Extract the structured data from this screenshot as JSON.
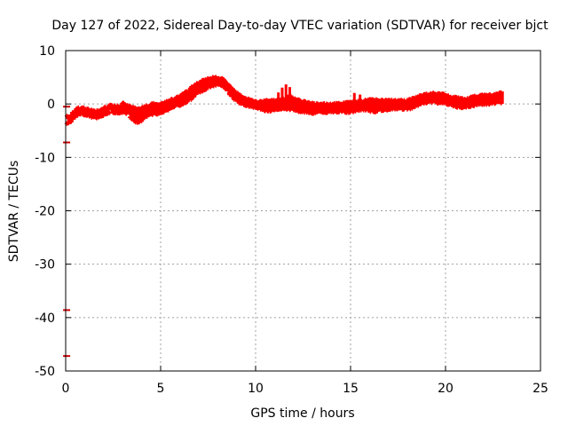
{
  "chart_data": {
    "type": "scatter",
    "title": "Day 127 of 2022, Sidereal Day-to-day VTEC variation (SDTVAR) for receiver bjct",
    "xlabel": "GPS time / hours",
    "ylabel": "SDTVAR / TECUs",
    "xlim": [
      0,
      25
    ],
    "ylim": [
      -50,
      10
    ],
    "x_ticks": [
      0,
      5,
      10,
      15,
      20,
      25
    ],
    "y_ticks": [
      10,
      0,
      -10,
      -20,
      -30,
      -40,
      -50
    ],
    "grid": true,
    "marker_color": "#ff0000",
    "series": [
      {
        "name": "SDTVAR",
        "color": "#ff0000",
        "trend": [
          [
            0.1,
            -3.0
          ],
          [
            0.3,
            -2.5
          ],
          [
            0.5,
            -1.8
          ],
          [
            0.7,
            -1.3
          ],
          [
            1.0,
            -1.4
          ],
          [
            1.3,
            -1.8
          ],
          [
            1.6,
            -2.0
          ],
          [
            1.9,
            -1.6
          ],
          [
            2.1,
            -1.2
          ],
          [
            2.4,
            -0.9
          ],
          [
            2.8,
            -1.1
          ],
          [
            3.1,
            -0.8
          ],
          [
            3.3,
            -1.3
          ],
          [
            3.5,
            -2.2
          ],
          [
            3.7,
            -2.9
          ],
          [
            3.9,
            -2.8
          ],
          [
            4.2,
            -1.8
          ],
          [
            4.5,
            -1.3
          ],
          [
            4.8,
            -1.3
          ],
          [
            5.1,
            -0.9
          ],
          [
            5.5,
            -0.2
          ],
          [
            5.9,
            0.3
          ],
          [
            6.2,
            0.6
          ],
          [
            6.5,
            1.3
          ],
          [
            6.9,
            2.5
          ],
          [
            7.3,
            3.3
          ],
          [
            7.7,
            4.0
          ],
          [
            8.1,
            4.3
          ],
          [
            8.3,
            3.9
          ],
          [
            8.6,
            2.6
          ],
          [
            9.0,
            1.1
          ],
          [
            9.4,
            0.4
          ],
          [
            9.8,
            0.1
          ],
          [
            10.2,
            -0.4
          ],
          [
            10.6,
            -0.8
          ],
          [
            11.0,
            -0.5
          ],
          [
            11.5,
            -0.2
          ],
          [
            12.0,
            -0.5
          ],
          [
            12.5,
            -0.9
          ],
          [
            13.0,
            -1.1
          ],
          [
            13.5,
            -1.0
          ],
          [
            14.0,
            -0.8
          ],
          [
            14.5,
            -0.9
          ],
          [
            15.0,
            -0.9
          ],
          [
            15.3,
            -0.6
          ],
          [
            15.6,
            -0.4
          ],
          [
            16.0,
            -0.7
          ],
          [
            16.4,
            -0.8
          ],
          [
            16.8,
            -0.5
          ],
          [
            17.3,
            -0.3
          ],
          [
            17.8,
            -0.3
          ],
          [
            18.2,
            -0.2
          ],
          [
            18.6,
            0.5
          ],
          [
            19.0,
            0.9
          ],
          [
            19.4,
            1.0
          ],
          [
            19.8,
            0.6
          ],
          [
            20.2,
            0.5
          ],
          [
            20.6,
            0.1
          ],
          [
            21.0,
            -0.1
          ],
          [
            21.4,
            0.3
          ],
          [
            21.8,
            0.6
          ],
          [
            22.2,
            0.5
          ],
          [
            22.6,
            0.8
          ],
          [
            22.9,
            0.9
          ]
        ],
        "secondary_trend": [
          [
            3.0,
            -0.3
          ],
          [
            3.4,
            -0.9
          ],
          [
            3.8,
            -1.4
          ],
          [
            4.2,
            -0.9
          ],
          [
            4.6,
            -0.4
          ],
          [
            5.0,
            -0.5
          ],
          [
            5.5,
            0.3
          ],
          [
            6.0,
            0.9
          ],
          [
            6.6,
            2.6
          ],
          [
            7.2,
            3.9
          ],
          [
            7.8,
            4.5
          ],
          [
            8.3,
            4.2
          ],
          [
            8.8,
            2.3
          ],
          [
            9.3,
            0.7
          ],
          [
            10.0,
            -0.2
          ],
          [
            10.5,
            0.1
          ],
          [
            11.3,
            0.3
          ],
          [
            11.8,
            0.9
          ],
          [
            12.3,
            0.2
          ],
          [
            13.0,
            -0.4
          ],
          [
            14.0,
            -0.5
          ],
          [
            15.0,
            -0.2
          ],
          [
            16.0,
            0.3
          ],
          [
            17.0,
            0.2
          ],
          [
            18.0,
            0.2
          ],
          [
            19.0,
            1.4
          ],
          [
            19.6,
            1.6
          ],
          [
            20.3,
            0.9
          ],
          [
            21.0,
            0.4
          ],
          [
            21.7,
            1.1
          ],
          [
            22.4,
            1.2
          ],
          [
            22.9,
            1.6
          ]
        ],
        "spikes": [
          [
            11.2,
            1.0
          ],
          [
            11.4,
            1.9
          ],
          [
            11.6,
            2.5
          ],
          [
            11.8,
            2.0
          ],
          [
            15.2,
            0.9
          ],
          [
            15.5,
            0.6
          ],
          [
            18.1,
            0.1
          ],
          [
            23.0,
            1.2
          ]
        ],
        "outliers": [
          [
            0.05,
            -0.5
          ],
          [
            0.05,
            -7.2
          ],
          [
            0.05,
            -38.6
          ],
          [
            0.05,
            -47.2
          ]
        ]
      }
    ]
  }
}
